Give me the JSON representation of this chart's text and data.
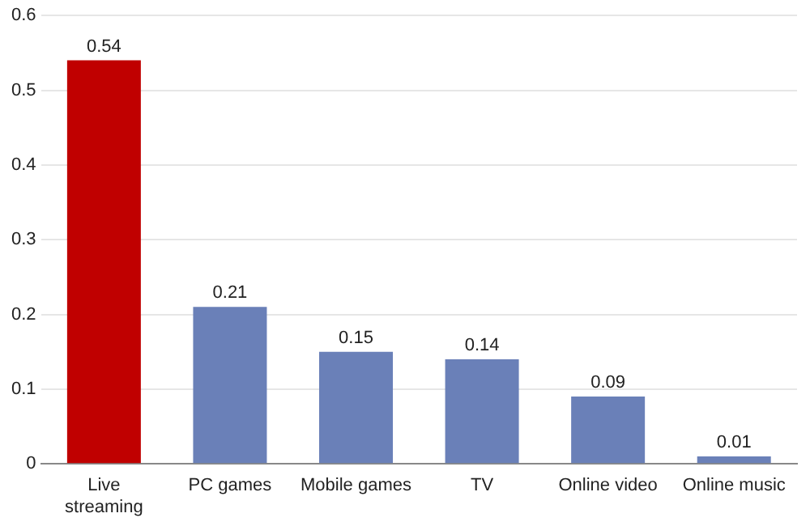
{
  "chart_data": {
    "type": "bar",
    "categories": [
      "Live streaming",
      "PC games",
      "Mobile games",
      "TV",
      "Online video",
      "Online music"
    ],
    "values": [
      0.54,
      0.21,
      0.15,
      0.14,
      0.09,
      0.01
    ],
    "colors": [
      "#c00000",
      "#6a80b8",
      "#6a80b8",
      "#6a80b8",
      "#6a80b8",
      "#6a80b8"
    ],
    "ylim": [
      0,
      0.6
    ],
    "yticks": [
      0,
      0.1,
      0.2,
      0.3,
      0.4,
      0.5,
      0.6
    ],
    "grid": "y",
    "data_labels": true
  }
}
